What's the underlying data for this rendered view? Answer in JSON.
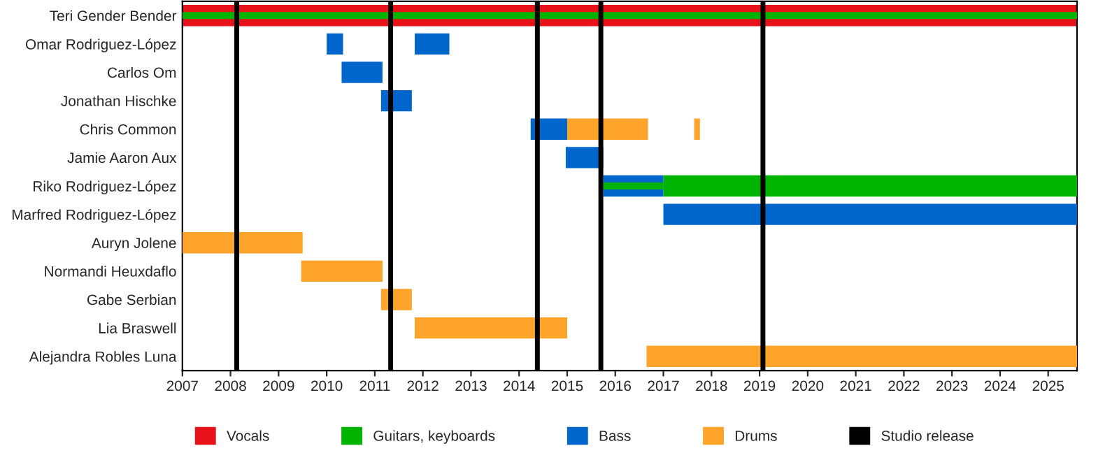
{
  "chart_data": {
    "type": "bar",
    "orientation": "horizontal",
    "categories": [
      "Teri Gender Bender",
      "Omar Rodriguez-López",
      "Carlos Om",
      "Jonathan Hischke",
      "Chris Common",
      "Jamie Aaron Aux",
      "Riko Rodriguez-López",
      "Marfred Rodriguez-López",
      "Auryn Jolene",
      "Normandi Heuxdaflo",
      "Gabe Serbian",
      "Lia Braswell",
      "Alejandra Robles Luna"
    ],
    "series": [
      {
        "name": "Vocals",
        "color": "#e8121a",
        "base": [
          2007,
          null,
          null,
          null,
          null,
          null,
          null,
          null,
          null,
          null,
          null,
          null,
          null
        ],
        "values": [
          18.6,
          null,
          null,
          null,
          null,
          null,
          null,
          null,
          null,
          null,
          null,
          null,
          null
        ]
      },
      {
        "name": "Guitars, keyboards",
        "color": "#00b300",
        "base": [
          2007,
          null,
          null,
          null,
          null,
          null,
          2017,
          null,
          null,
          null,
          null,
          null,
          null
        ],
        "values": [
          18.6,
          null,
          null,
          null,
          null,
          null,
          8.6,
          null,
          null,
          null,
          null,
          null,
          null
        ]
      },
      {
        "name": "Bass",
        "color": "#0066cc",
        "base": [
          null,
          2010.0,
          2010.31,
          2011.13,
          2014.24,
          2014.97,
          2015.75,
          2017.0,
          null,
          null,
          null,
          null,
          null
        ],
        "values": [
          null,
          0.34,
          0.85,
          0.64,
          0.76,
          0.78,
          1.25,
          8.6,
          null,
          null,
          null,
          null,
          null
        ]
      },
      {
        "color": "#0066cc",
        "base": [
          null,
          2011.83,
          null,
          null,
          null,
          null,
          null,
          null,
          null,
          null,
          null,
          null,
          null
        ],
        "values": [
          null,
          0.72,
          null,
          null,
          null,
          null,
          null,
          null,
          null,
          null,
          null,
          null,
          null
        ]
      },
      {
        "name": "Drums",
        "color": "#ffa42a",
        "base": [
          null,
          null,
          null,
          null,
          2015.0,
          null,
          null,
          null,
          2007,
          2009.47,
          2011.13,
          2011.83,
          2016.65
        ],
        "values": [
          null,
          null,
          null,
          null,
          1.68,
          null,
          null,
          null,
          2.5,
          1.69,
          0.64,
          3.17,
          8.95
        ]
      },
      {
        "color": "#ffa42a",
        "base": [
          null,
          null,
          null,
          null,
          2017.64,
          null,
          null,
          null,
          null,
          null,
          null,
          null,
          null
        ],
        "values": [
          null,
          null,
          null,
          null,
          0.12,
          null,
          null,
          null,
          null,
          null,
          null,
          null,
          null
        ]
      },
      {
        "color": "#00b300",
        "base": [
          null,
          null,
          null,
          null,
          null,
          null,
          2015.75,
          null,
          null,
          null,
          null,
          null,
          null
        ],
        "values": [
          null,
          null,
          null,
          null,
          null,
          null,
          1.25,
          null,
          null,
          null,
          null,
          null,
          null
        ]
      }
    ],
    "ref_lines": [
      {
        "axis": "x",
        "value": 2008.13,
        "label": "Studio release",
        "color": "#000000"
      },
      {
        "axis": "x",
        "value": 2011.33,
        "color": "#000000"
      },
      {
        "axis": "x",
        "value": 2014.38,
        "color": "#000000"
      },
      {
        "axis": "x",
        "value": 2015.7,
        "color": "#000000"
      },
      {
        "axis": "x",
        "value": 2019.07,
        "color": "#000000"
      }
    ],
    "xlim": [
      2007,
      2025.6
    ],
    "xticks": [
      2007,
      2008,
      2009,
      2010,
      2011,
      2012,
      2013,
      2014,
      2015,
      2016,
      2017,
      2018,
      2019,
      2020,
      2021,
      2022,
      2023,
      2024,
      2025
    ],
    "grid": false,
    "legend": "bottom"
  }
}
